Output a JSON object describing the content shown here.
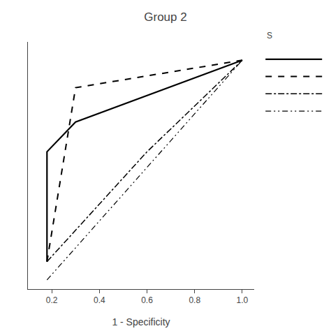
{
  "chart_data": {
    "type": "line",
    "title": "Group 2",
    "xlabel": "1 - Specificity",
    "xlim": [
      0.1,
      1.05
    ],
    "xticks": [
      0.2,
      0.4,
      0.6,
      0.8,
      {
        "value": 1.0,
        "label": "1.0"
      }
    ],
    "ylim": [
      0,
      1.08
    ],
    "grid": false,
    "tick_labels": "x",
    "annotations": [
      "S"
    ],
    "series": [
      {
        "x": [
          0.18,
          0.18,
          0.3,
          1.0
        ],
        "values": [
          0.12,
          0.6,
          0.73,
          1.0
        ],
        "color": "#000000",
        "line_style": "solid"
      },
      {
        "x": [
          0.18,
          0.3,
          1.0
        ],
        "values": [
          0.12,
          0.88,
          1.0
        ],
        "color": "#000000",
        "line_style": "dashed"
      },
      {
        "x": [
          0.18,
          0.6,
          1.0
        ],
        "values": [
          0.12,
          0.6,
          1.0
        ],
        "color": "#000000",
        "line_style": "dashdot"
      },
      {
        "x": [
          0.18,
          1.0
        ],
        "values": [
          0.04,
          1.0
        ],
        "color": "#000000",
        "line_style": "dashdotdotted"
      }
    ]
  }
}
